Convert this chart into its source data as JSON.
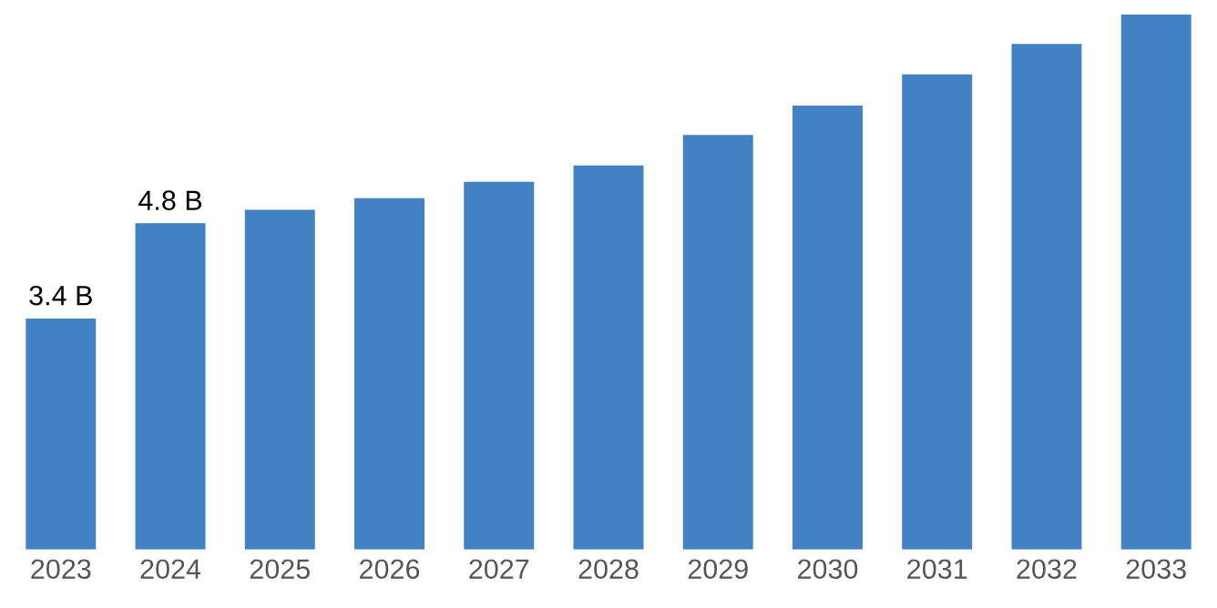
{
  "chart_data": {
    "type": "bar",
    "categories": [
      "2023",
      "2024",
      "2025",
      "2026",
      "2027",
      "2028",
      "2029",
      "2030",
      "2031",
      "2032",
      "2033"
    ],
    "values": [
      3.4,
      4.8,
      5.0,
      5.17,
      5.41,
      5.65,
      6.1,
      6.53,
      6.99,
      7.44,
      7.87
    ],
    "value_labels": [
      "3.4 B",
      "4.8 B",
      null,
      null,
      null,
      null,
      null,
      null,
      null,
      null,
      null
    ],
    "color": "#4181c4",
    "grid": false,
    "legend": false
  }
}
